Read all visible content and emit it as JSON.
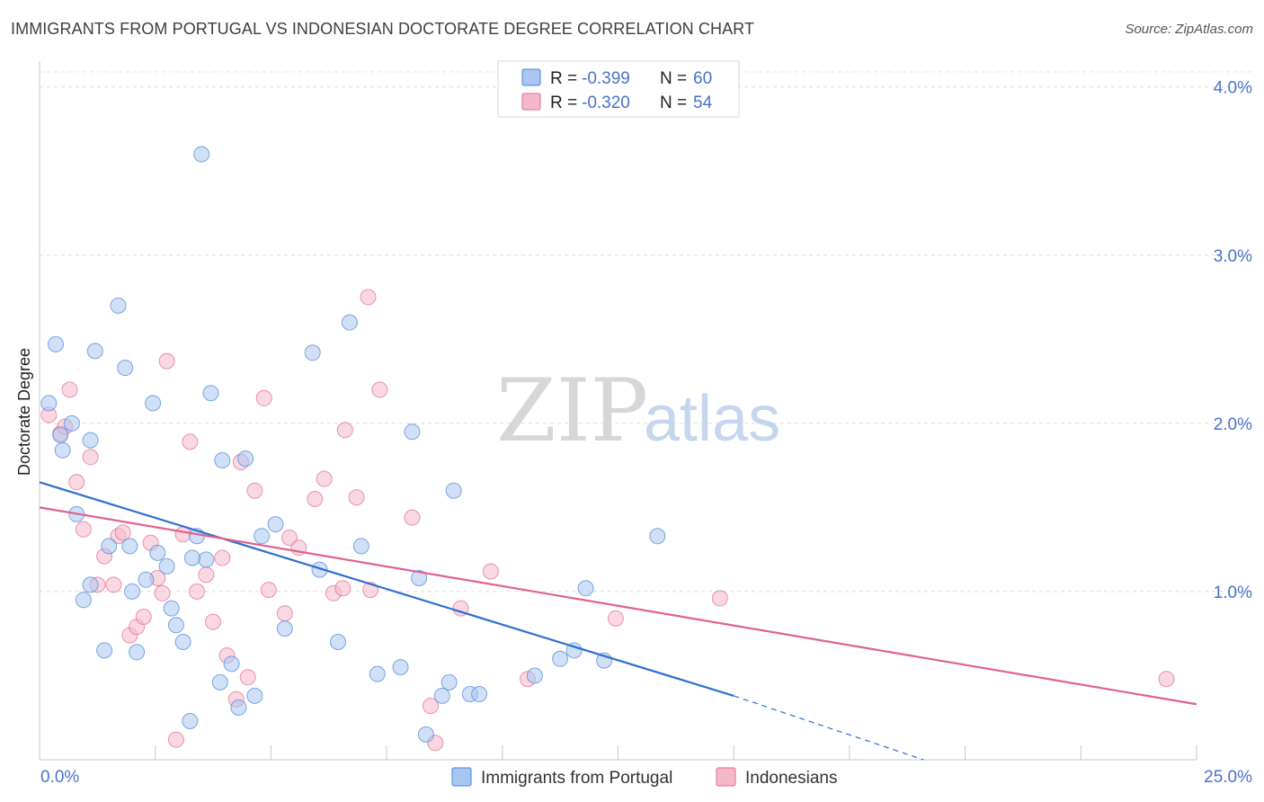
{
  "header": {
    "title": "IMMIGRANTS FROM PORTUGAL VS INDONESIAN DOCTORATE DEGREE CORRELATION CHART",
    "source": "Source: ZipAtlas.com"
  },
  "watermark": {
    "zip": "ZIP",
    "atlas": "atlas"
  },
  "legend": {
    "rows": [
      {
        "r_label": "R = ",
        "r_value": "-0.399",
        "n_label": "N = ",
        "n_value": "60",
        "color": "#a9c6f0"
      },
      {
        "r_label": "R = ",
        "r_value": "-0.320",
        "n_label": "N = ",
        "n_value": "54",
        "color": "#f5b8ca"
      }
    ]
  },
  "bottom_legend": {
    "items": [
      {
        "label": "Immigrants from Portugal",
        "color": "#a9c6f0"
      },
      {
        "label": "Indonesians",
        "color": "#f5b8ca"
      }
    ]
  },
  "chart_data": {
    "type": "scatter",
    "title": "IMMIGRANTS FROM PORTUGAL VS INDONESIAN DOCTORATE DEGREE CORRELATION CHART",
    "xlabel": "",
    "ylabel": "Doctorate Degree",
    "xlim": [
      0,
      25
    ],
    "ylim": [
      0,
      4.1
    ],
    "x_tick_labels": [
      "0.0%",
      "25.0%"
    ],
    "y_ticks": [
      1.0,
      2.0,
      3.0,
      4.0
    ],
    "y_tick_labels": [
      "1.0%",
      "2.0%",
      "3.0%",
      "4.0%"
    ],
    "grid": true,
    "legend_position": "top-center",
    "series": [
      {
        "name": "Immigrants from Portugal",
        "color": "#4a86d8",
        "fill": "#a9c6f0",
        "trend": {
          "x0": 0,
          "y0": 1.65,
          "x1": 15.0,
          "y1": 0.38,
          "dash_to_x": 19.1,
          "dash_to_y": 0.0
        },
        "points": [
          [
            0.2,
            2.12
          ],
          [
            0.35,
            2.47
          ],
          [
            0.5,
            1.84
          ],
          [
            0.7,
            2.0
          ],
          [
            0.45,
            1.93
          ],
          [
            0.8,
            1.46
          ],
          [
            0.95,
            0.95
          ],
          [
            1.1,
            1.04
          ],
          [
            1.2,
            2.43
          ],
          [
            1.4,
            0.65
          ],
          [
            1.5,
            1.27
          ],
          [
            1.7,
            2.7
          ],
          [
            1.85,
            2.33
          ],
          [
            1.95,
            1.27
          ],
          [
            2.1,
            0.64
          ],
          [
            2.3,
            1.07
          ],
          [
            2.45,
            2.12
          ],
          [
            2.55,
            1.23
          ],
          [
            2.75,
            1.15
          ],
          [
            2.85,
            0.9
          ],
          [
            2.95,
            0.8
          ],
          [
            3.1,
            0.7
          ],
          [
            3.25,
            0.23
          ],
          [
            3.4,
            1.33
          ],
          [
            3.5,
            3.6
          ],
          [
            3.6,
            1.19
          ],
          [
            3.7,
            2.18
          ],
          [
            3.9,
            0.46
          ],
          [
            3.95,
            1.78
          ],
          [
            4.15,
            0.57
          ],
          [
            4.3,
            0.31
          ],
          [
            4.45,
            1.79
          ],
          [
            4.65,
            0.38
          ],
          [
            4.8,
            1.33
          ],
          [
            5.1,
            1.4
          ],
          [
            5.3,
            0.78
          ],
          [
            5.9,
            2.42
          ],
          [
            6.05,
            1.13
          ],
          [
            6.45,
            0.7
          ],
          [
            6.7,
            2.6
          ],
          [
            6.95,
            1.27
          ],
          [
            7.3,
            0.51
          ],
          [
            7.8,
            0.55
          ],
          [
            8.05,
            1.95
          ],
          [
            8.2,
            1.08
          ],
          [
            8.35,
            0.15
          ],
          [
            8.7,
            0.38
          ],
          [
            8.85,
            0.46
          ],
          [
            8.95,
            1.6
          ],
          [
            9.3,
            0.39
          ],
          [
            9.5,
            0.39
          ],
          [
            10.7,
            0.5
          ],
          [
            11.25,
            0.6
          ],
          [
            11.55,
            0.65
          ],
          [
            11.8,
            1.02
          ],
          [
            12.2,
            0.59
          ],
          [
            13.35,
            1.33
          ],
          [
            1.1,
            1.9
          ],
          [
            2.0,
            1.0
          ],
          [
            3.3,
            1.2
          ]
        ]
      },
      {
        "name": "Indonesians",
        "color": "#e26a94",
        "fill": "#f5b8ca",
        "trend": {
          "x0": 0,
          "y0": 1.5,
          "x1": 25.0,
          "y1": 0.33
        },
        "points": [
          [
            0.2,
            2.05
          ],
          [
            0.45,
            1.94
          ],
          [
            0.55,
            1.98
          ],
          [
            0.65,
            2.2
          ],
          [
            0.8,
            1.65
          ],
          [
            0.95,
            1.37
          ],
          [
            1.1,
            1.8
          ],
          [
            1.25,
            1.04
          ],
          [
            1.4,
            1.21
          ],
          [
            1.6,
            1.04
          ],
          [
            1.7,
            1.33
          ],
          [
            1.8,
            1.35
          ],
          [
            1.95,
            0.74
          ],
          [
            2.1,
            0.79
          ],
          [
            2.25,
            0.85
          ],
          [
            2.4,
            1.29
          ],
          [
            2.55,
            1.08
          ],
          [
            2.65,
            0.99
          ],
          [
            2.75,
            2.37
          ],
          [
            2.95,
            0.12
          ],
          [
            3.1,
            1.34
          ],
          [
            3.25,
            1.89
          ],
          [
            3.4,
            1.0
          ],
          [
            3.6,
            1.1
          ],
          [
            3.75,
            0.82
          ],
          [
            3.95,
            1.2
          ],
          [
            4.05,
            0.62
          ],
          [
            4.25,
            0.36
          ],
          [
            4.35,
            1.77
          ],
          [
            4.5,
            0.49
          ],
          [
            4.65,
            1.6
          ],
          [
            4.85,
            2.15
          ],
          [
            4.95,
            1.01
          ],
          [
            5.3,
            0.87
          ],
          [
            5.4,
            1.32
          ],
          [
            5.6,
            1.26
          ],
          [
            5.95,
            1.55
          ],
          [
            6.15,
            1.67
          ],
          [
            6.35,
            0.99
          ],
          [
            6.55,
            1.02
          ],
          [
            6.6,
            1.96
          ],
          [
            6.85,
            1.56
          ],
          [
            7.15,
            1.01
          ],
          [
            7.1,
            2.75
          ],
          [
            7.35,
            2.2
          ],
          [
            8.05,
            1.44
          ],
          [
            8.45,
            0.32
          ],
          [
            8.55,
            0.1
          ],
          [
            9.1,
            0.9
          ],
          [
            9.75,
            1.12
          ],
          [
            10.55,
            0.48
          ],
          [
            12.45,
            0.84
          ],
          [
            14.7,
            0.96
          ],
          [
            24.35,
            0.48
          ]
        ]
      }
    ]
  }
}
